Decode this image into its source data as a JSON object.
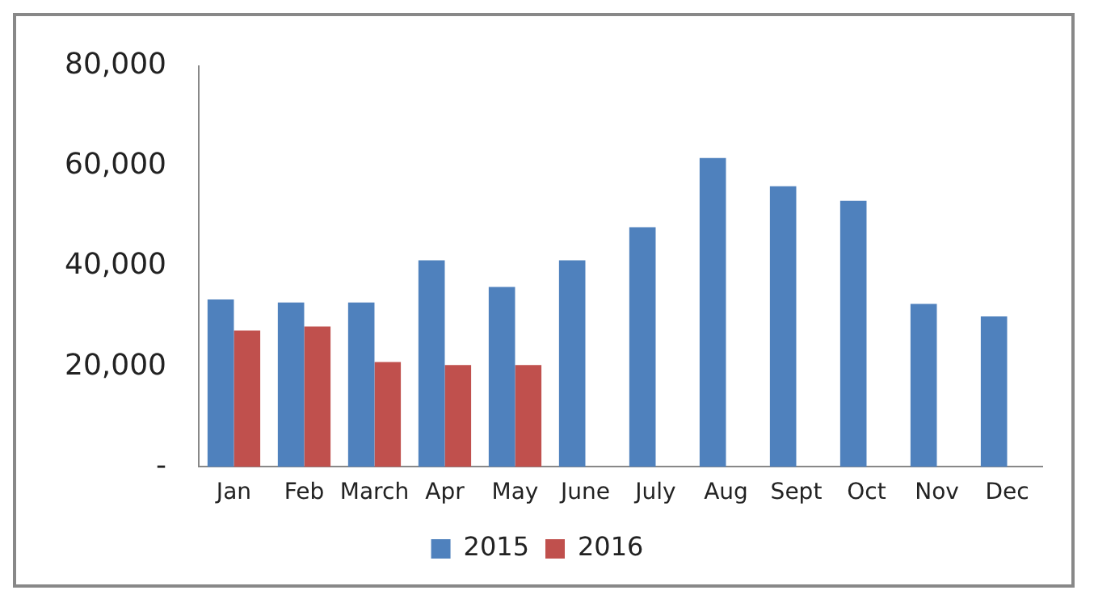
{
  "chart_data": {
    "type": "bar",
    "categories": [
      "Jan",
      "Feb",
      "March",
      "Apr",
      "May",
      "June",
      "July",
      "Aug",
      "Sept",
      "Oct",
      "Nov",
      "Dec"
    ],
    "series": [
      {
        "name": "2015",
        "color": "#4f81bd",
        "values": [
          33400,
          32800,
          32800,
          41200,
          35900,
          41200,
          47800,
          61600,
          56000,
          53100,
          32500,
          30000
        ]
      },
      {
        "name": "2016",
        "color": "#c0504d",
        "values": [
          27200,
          28000,
          20900,
          20300,
          20300,
          null,
          null,
          null,
          null,
          null,
          null,
          null
        ]
      }
    ],
    "ylim": [
      0,
      80000
    ],
    "yticks": [
      {
        "value": 0,
        "label": "-"
      },
      {
        "value": 20000,
        "label": "20,000"
      },
      {
        "value": 40000,
        "label": "40,000"
      },
      {
        "value": 60000,
        "label": "60,000"
      },
      {
        "value": 80000,
        "label": "80,000"
      }
    ],
    "grid": false,
    "legend": "bottom"
  }
}
